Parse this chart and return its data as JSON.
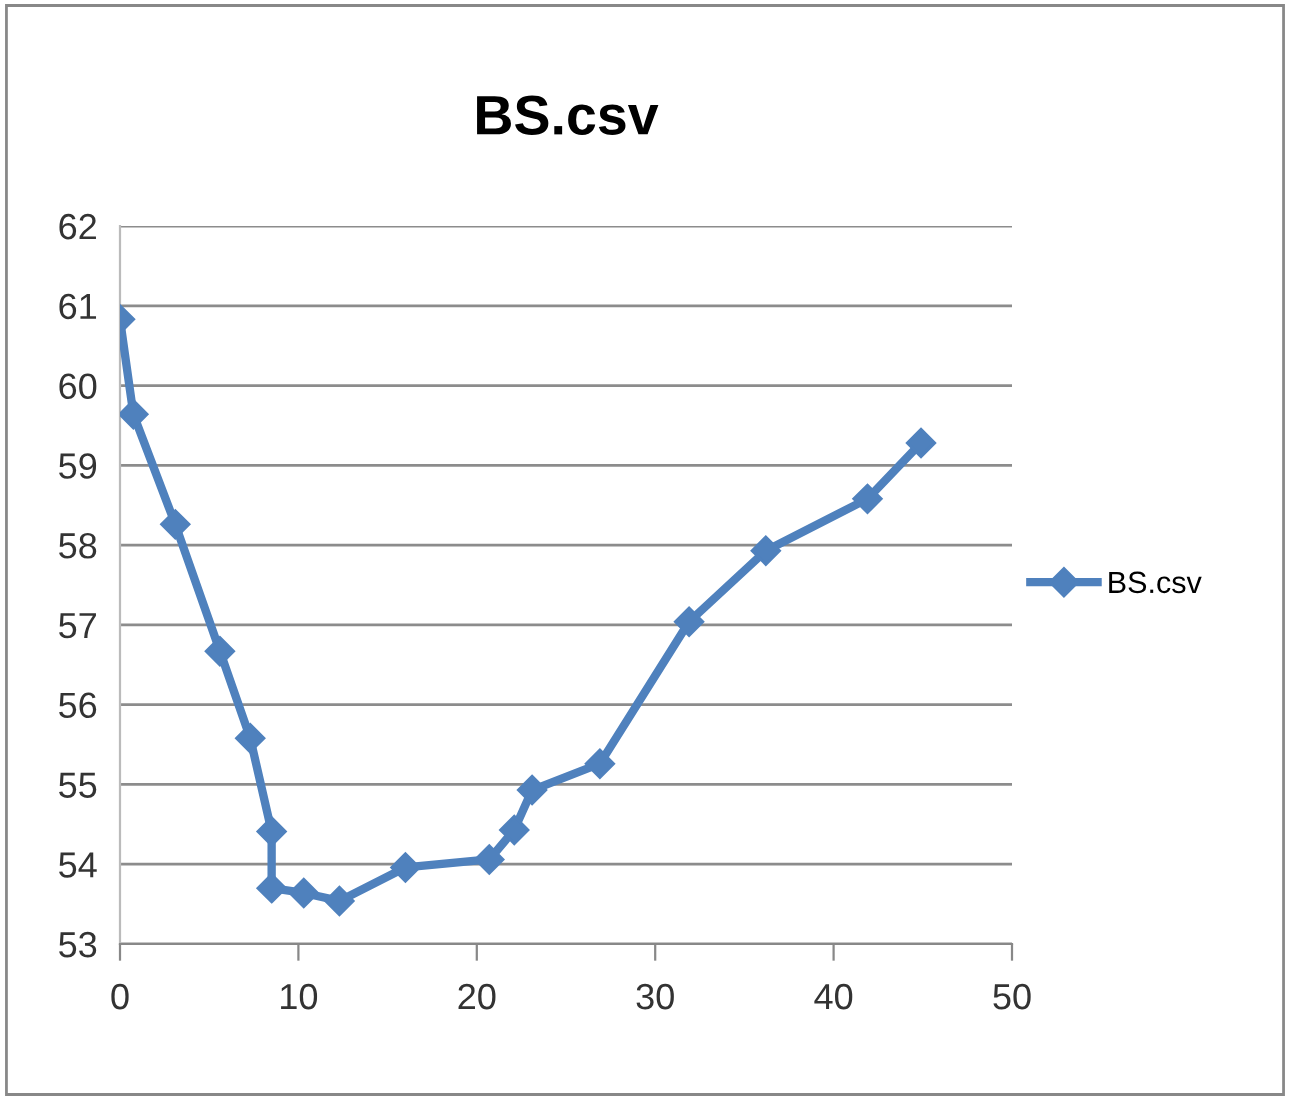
{
  "chart_data": {
    "type": "line",
    "title": "BS.csv",
    "x": [
      0,
      0.75,
      3.1,
      5.6,
      7.3,
      8.5,
      8.5,
      10.3,
      12.3,
      16.0,
      20.7,
      22.1,
      23.1,
      26.9,
      31.9,
      36.2,
      41.9,
      44.9
    ],
    "series": [
      {
        "name": "BS.csv",
        "color": "#4f81bd",
        "values": [
          60.83,
          59.64,
          58.26,
          56.67,
          55.58,
          54.41,
          53.7,
          53.64,
          53.54,
          53.96,
          54.06,
          54.43,
          54.93,
          55.26,
          57.04,
          57.93,
          58.58,
          59.28
        ]
      }
    ],
    "xlim": [
      0,
      50
    ],
    "xticks": [
      0,
      10,
      20,
      30,
      40,
      50
    ],
    "ylim": [
      53,
      62
    ],
    "yticks": [
      53,
      54,
      55,
      56,
      57,
      58,
      59,
      60,
      61,
      62
    ],
    "grid": "y",
    "legend": "right",
    "marker": "diamond",
    "line_style": "solid"
  }
}
